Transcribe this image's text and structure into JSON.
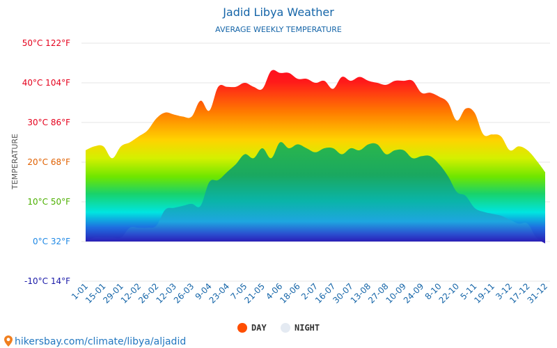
{
  "chart_data": {
    "type": "area",
    "title": "Jadid Libya Weather",
    "subtitle": "AVERAGE WEEKLY TEMPERATURE",
    "ylabel": "TEMPERATURE",
    "ylim": [
      -10,
      50
    ],
    "yticks": [
      {
        "value": 50,
        "label": "50°C 122°F",
        "color": "#e5001c"
      },
      {
        "value": 40,
        "label": "40°C 104°F",
        "color": "#e5001c"
      },
      {
        "value": 30,
        "label": "30°C 86°F",
        "color": "#e5001c"
      },
      {
        "value": 20,
        "label": "20°C 68°F",
        "color": "#e06000"
      },
      {
        "value": 10,
        "label": "10°C 50°F",
        "color": "#4caf00"
      },
      {
        "value": 0,
        "label": "0°C 32°F",
        "color": "#1e88e5"
      },
      {
        "value": -10,
        "label": "-10°C 14°F",
        "color": "#1a1aa8"
      }
    ],
    "xtick_labels": [
      "1-01",
      "15-01",
      "29-01",
      "12-02",
      "26-02",
      "12-03",
      "26-03",
      "9-04",
      "23-04",
      "7-05",
      "21-05",
      "4-06",
      "18-06",
      "2-07",
      "16-07",
      "30-07",
      "13-08",
      "27-08",
      "10-09",
      "24-09",
      "8-10",
      "22-10",
      "5-11",
      "19-11",
      "3-12",
      "17-12",
      "31-12"
    ],
    "grid": true,
    "legend_position": "bottom",
    "series": [
      {
        "name": "DAY",
        "legend_color": "#ff4e00",
        "values": [
          23,
          24,
          24,
          21,
          24,
          25,
          26.5,
          28,
          31,
          32.5,
          32,
          31.5,
          31.5,
          35.5,
          33,
          39,
          39,
          39,
          40,
          39,
          38.5,
          43,
          42.5,
          42.5,
          41,
          41,
          40,
          40.5,
          38.5,
          41.5,
          40.5,
          41.5,
          40.5,
          40,
          39.5,
          40.5,
          40.5,
          40.5,
          37.5,
          37.5,
          36.5,
          35,
          30.5,
          33.5,
          32.5,
          27,
          27,
          26.5,
          23,
          24,
          23,
          20.5,
          17.5
        ]
      },
      {
        "name": "NIGHT",
        "legend_color": "#e4eaf2",
        "values": [
          0,
          1,
          1,
          1,
          1,
          3.5,
          3.5,
          3.5,
          4,
          8,
          8.5,
          9,
          9.5,
          9,
          15,
          15.5,
          17.5,
          19.5,
          22,
          21,
          23.5,
          21,
          25,
          23.5,
          24.5,
          23.5,
          22.5,
          23.5,
          23.5,
          22,
          23.5,
          23,
          24.5,
          24.5,
          22,
          23,
          23,
          21,
          21.5,
          21.5,
          19.5,
          16.5,
          12.5,
          11.5,
          8.5,
          7.5,
          7,
          6.5,
          5.5,
          4.5,
          4.5,
          1,
          -0.5
        ]
      }
    ]
  },
  "source_text": "hikersbay.com/climate/libya/aljadid"
}
